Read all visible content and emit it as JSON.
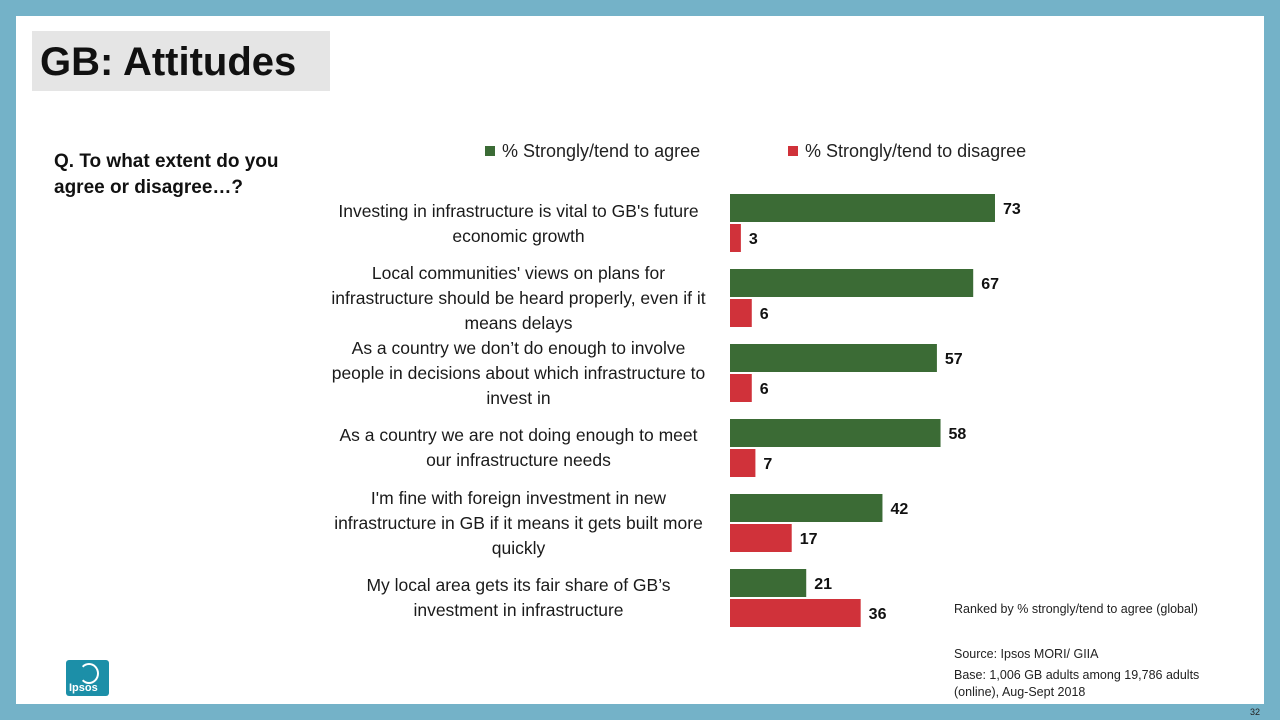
{
  "title": "GB: Attitudes",
  "question": "Q. To what extent do you agree or disagree…?",
  "colors": {
    "agree": "#3b6b35",
    "disagree": "#d0323a",
    "frame": "#74b2c8"
  },
  "chart_data": {
    "type": "bar",
    "orientation": "horizontal",
    "categories": [
      "Investing in infrastructure is vital to GB's future economic growth",
      "Local communities' views on plans for infrastructure should be heard properly, even if it means delays",
      "As a country we don’t do enough to involve people in decisions about which infrastructure to invest in",
      "As a country we are not doing enough to meet our infrastructure needs",
      "I'm fine with foreign investment in new infrastructure in GB if it means it gets built more quickly",
      "My local area gets its fair share of GB’s investment in infrastructure"
    ],
    "series": [
      {
        "name": "% Strongly/tend to agree",
        "values": [
          73,
          67,
          57,
          58,
          42,
          21
        ]
      },
      {
        "name": "% Strongly/tend to disagree",
        "values": [
          3,
          6,
          6,
          7,
          17,
          36
        ]
      }
    ],
    "xlim": [
      0,
      100
    ],
    "legend_position": "top"
  },
  "footnotes": {
    "ranked": "Ranked by % strongly/tend to agree (global)",
    "source": "Source: Ipsos MORI/ GIIA",
    "base": "Base: 1,006 GB adults among 19,786 adults (online), Aug-Sept 2018"
  },
  "logo_text": "Ipsos",
  "page_number": "32"
}
